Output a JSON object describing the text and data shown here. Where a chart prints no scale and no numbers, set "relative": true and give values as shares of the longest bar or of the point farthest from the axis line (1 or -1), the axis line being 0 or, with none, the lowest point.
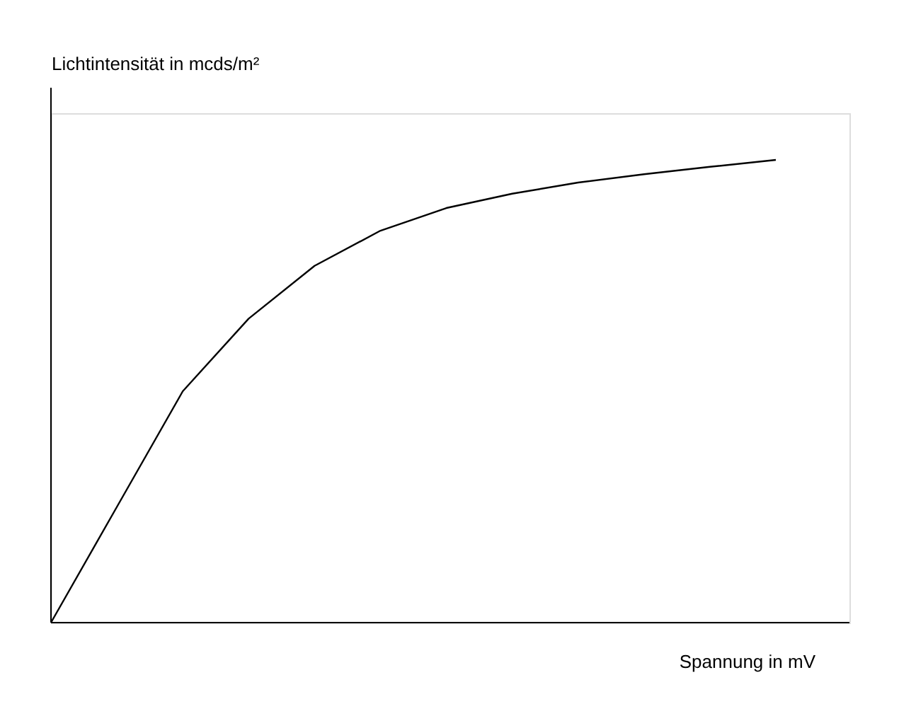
{
  "chart_data": {
    "type": "line",
    "relative": true,
    "ylabel": "Lichtintensität in mcds/m²",
    "xlabel": "Spannung in mV",
    "categories": [
      null,
      null,
      null,
      null,
      null,
      null,
      null,
      null,
      null,
      null,
      null,
      null
    ],
    "series": [
      {
        "color": "#000000",
        "values": [
          0,
          0.25,
          0.5,
          0.657,
          0.771,
          0.847,
          0.896,
          0.927,
          0.951,
          0.969,
          0.985,
          1
        ]
      }
    ],
    "grid": false,
    "marker": "none",
    "line_style": "solid",
    "tick_labels": false
  }
}
